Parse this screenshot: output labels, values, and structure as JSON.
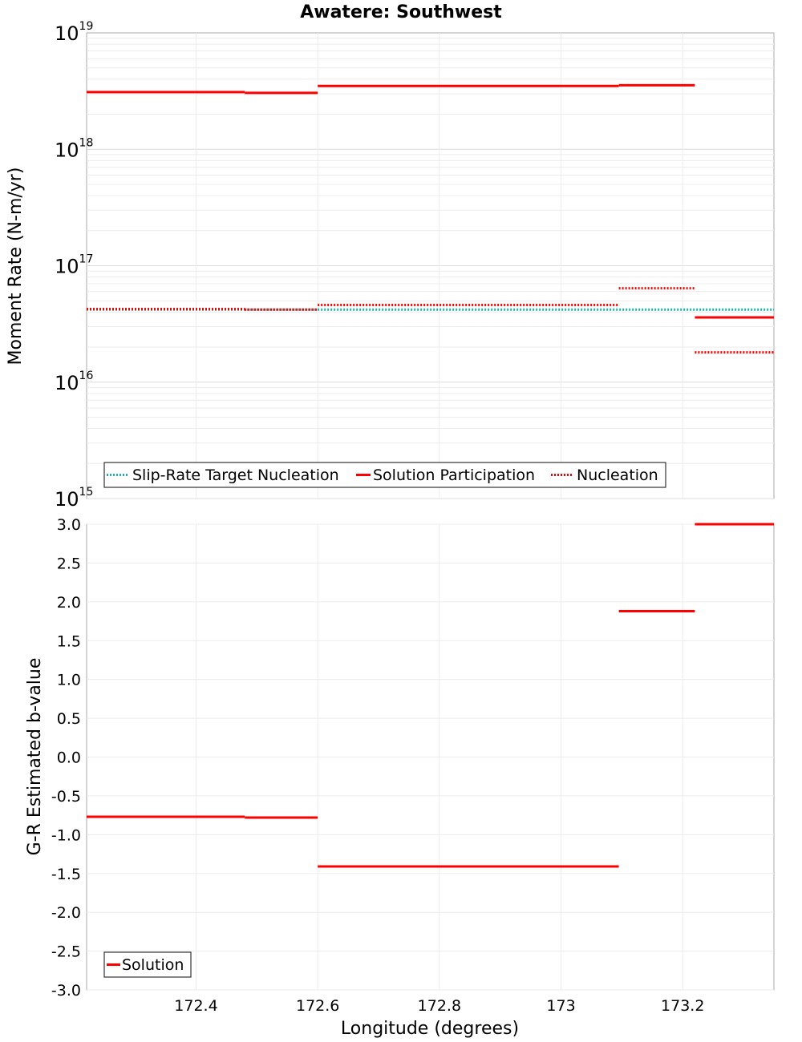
{
  "chart_data": [
    {
      "type": "line",
      "title": "Awatere: Southwest",
      "ylabel": "Moment Rate (N-m/yr)",
      "xlabel": "",
      "yscale": "log",
      "ylim": [
        1000000000000000.0,
        1e+19
      ],
      "xlim": [
        172.22,
        173.35
      ],
      "grid": true,
      "ytick_labels": [
        {
          "base": "10",
          "exp": "15"
        },
        {
          "base": "10",
          "exp": "16"
        },
        {
          "base": "10",
          "exp": "17"
        },
        {
          "base": "10",
          "exp": "18"
        },
        {
          "base": "10",
          "exp": "19"
        }
      ],
      "legend_position": "bottom-left",
      "series": [
        {
          "name": "Slip-Rate Target Nucleation",
          "style": "dotted",
          "color": "#20b2aa",
          "segments": [
            {
              "x0": 172.22,
              "x1": 172.6,
              "y": 4.2e+16
            },
            {
              "x0": 172.6,
              "x1": 173.35,
              "y": 4.2e+16
            }
          ]
        },
        {
          "name": "Solution Participation",
          "style": "solid",
          "color": "#ff0000",
          "segments": [
            {
              "x0": 172.22,
              "x1": 172.48,
              "y": 3.1e+18
            },
            {
              "x0": 172.48,
              "x1": 172.6,
              "y": 3.05e+18
            },
            {
              "x0": 172.6,
              "x1": 173.095,
              "y": 3.5e+18
            },
            {
              "x0": 173.095,
              "x1": 173.22,
              "y": 3.55e+18
            },
            {
              "x0": 173.22,
              "x1": 173.35,
              "y": 3.6e+16
            }
          ]
        },
        {
          "name": "Nucleation",
          "style": "dotted",
          "color": "#ff0000",
          "segments": [
            {
              "x0": 172.22,
              "x1": 172.48,
              "y": 4.25e+16
            },
            {
              "x0": 172.48,
              "x1": 172.6,
              "y": 4.2e+16
            },
            {
              "x0": 172.6,
              "x1": 173.095,
              "y": 4.6e+16
            },
            {
              "x0": 173.095,
              "x1": 173.22,
              "y": 6.4e+16
            },
            {
              "x0": 173.22,
              "x1": 173.35,
              "y": 1.8e+16
            }
          ]
        }
      ]
    },
    {
      "type": "line",
      "title": "",
      "ylabel": "G-R Estimated b-value",
      "xlabel": "Longitude (degrees)",
      "ylim": [
        -3.0,
        3.0
      ],
      "xlim": [
        172.22,
        173.35
      ],
      "grid": true,
      "yticks": [
        {
          "value": 3.0,
          "label": "3.0"
        },
        {
          "value": 2.5,
          "label": "2.5"
        },
        {
          "value": 2.0,
          "label": "2.0"
        },
        {
          "value": 1.5,
          "label": "1.5"
        },
        {
          "value": 1.0,
          "label": "1.0"
        },
        {
          "value": 0.5,
          "label": "0.5"
        },
        {
          "value": 0.0,
          "label": "0.0"
        },
        {
          "value": -0.5,
          "label": "-0.5"
        },
        {
          "value": -1.0,
          "label": "-1.0"
        },
        {
          "value": -1.5,
          "label": "-1.5"
        },
        {
          "value": -2.0,
          "label": "-2.0"
        },
        {
          "value": -2.5,
          "label": "-2.5"
        },
        {
          "value": -3.0,
          "label": "-3.0"
        }
      ],
      "xticks": [
        {
          "value": 172.4,
          "label": "172.4"
        },
        {
          "value": 172.6,
          "label": "172.6"
        },
        {
          "value": 172.8,
          "label": "172.8"
        },
        {
          "value": 173.0,
          "label": "173"
        },
        {
          "value": 173.2,
          "label": "173.2"
        }
      ],
      "legend_position": "bottom-left",
      "series": [
        {
          "name": "Solution",
          "style": "solid",
          "color": "#ff0000",
          "segments": [
            {
              "x0": 172.22,
              "x1": 172.48,
              "y": -0.77
            },
            {
              "x0": 172.48,
              "x1": 172.6,
              "y": -0.78
            },
            {
              "x0": 172.6,
              "x1": 173.095,
              "y": -1.41
            },
            {
              "x0": 173.095,
              "x1": 173.22,
              "y": 1.88
            },
            {
              "x0": 173.22,
              "x1": 173.35,
              "y": 3.0
            }
          ]
        }
      ]
    }
  ]
}
